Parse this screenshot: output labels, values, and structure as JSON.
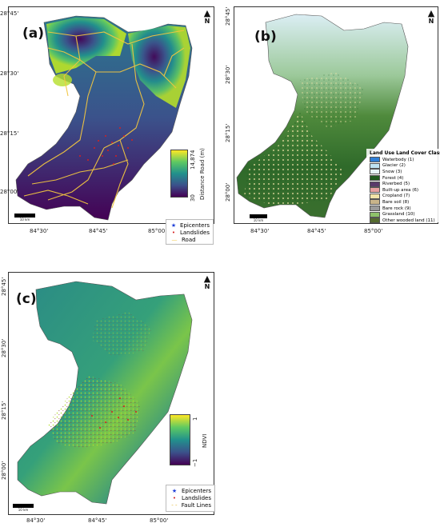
{
  "panels": {
    "a": {
      "letter": "(a)",
      "lat_ticks": [
        "28°45'",
        "28°30'",
        "28°15'",
        "28°00'"
      ],
      "lon_ticks": [
        "84°30'",
        "84°45'",
        "85°00'"
      ],
      "north": "N",
      "colorbar": {
        "title": "Distance  Road (m)",
        "max": "14,874",
        "min": "30",
        "colors": [
          "#440154",
          "#3b528b",
          "#21918c",
          "#5ec962",
          "#fde725"
        ]
      },
      "legend": [
        {
          "symbol": "★",
          "color": "#1e3fd8",
          "label": "Epicenters"
        },
        {
          "symbol": "•",
          "color": "#d62020",
          "label": "Landslides"
        },
        {
          "symbol": "—",
          "color": "#f2c640",
          "label": "Road"
        }
      ],
      "scale": "10 km"
    },
    "b": {
      "letter": "(b)",
      "lat_ticks": [
        "28°45'",
        "28°30'",
        "28°15'",
        "28°00'"
      ],
      "lon_ticks": [
        "84°30'",
        "84°45'",
        "85°00'"
      ],
      "north": "N",
      "legend_title": "Land Use Land Cover Classes",
      "classes": [
        {
          "label": "Waterbody (1)",
          "color": "#2f7fd6"
        },
        {
          "label": "Glacier (2)",
          "color": "#bfe3f2"
        },
        {
          "label": "Snow (3)",
          "color": "#e6f3f8"
        },
        {
          "label": "Forest (4)",
          "color": "#1f5a1f"
        },
        {
          "label": "Riverbed (5)",
          "color": "#5a3a6a"
        },
        {
          "label": "Built-up area (6)",
          "color": "#e8a0a0"
        },
        {
          "label": "Cropland (7)",
          "color": "#f2e4a8"
        },
        {
          "label": "Bare soil (8)",
          "color": "#c8b48a"
        },
        {
          "label": "Bare rock (9)",
          "color": "#9a9a9a"
        },
        {
          "label": "Grassland (10)",
          "color": "#8ec26a"
        },
        {
          "label": "Other wooded land (11)",
          "color": "#556b2f"
        }
      ],
      "scale": "10 km"
    },
    "c": {
      "letter": "(c)",
      "lat_ticks": [
        "28°45'",
        "28°30'",
        "28°15'",
        "28°00'"
      ],
      "lon_ticks": [
        "84°30'",
        "84°45'",
        "85°00'"
      ],
      "north": "N",
      "colorbar": {
        "title": "NDVI",
        "max": "1",
        "min": "−1",
        "colors": [
          "#440154",
          "#3b528b",
          "#21918c",
          "#5ec962",
          "#fde725"
        ]
      },
      "legend": [
        {
          "symbol": "★",
          "color": "#1e3fd8",
          "label": "Epicenters"
        },
        {
          "symbol": "•",
          "color": "#d62020",
          "label": "Landslides"
        },
        {
          "symbol": "- -",
          "color": "#e0b020",
          "label": "Fault Lines"
        }
      ],
      "scale": "10 km"
    }
  }
}
